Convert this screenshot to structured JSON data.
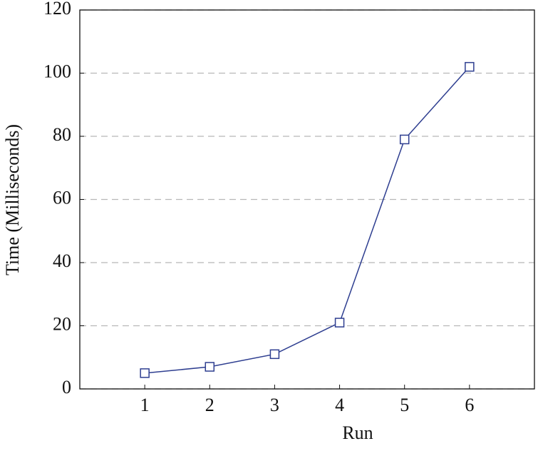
{
  "chart_data": {
    "type": "line",
    "x_label": "Run",
    "y_label": "Time (Milliseconds)",
    "x": [
      1,
      2,
      3,
      4,
      5,
      6
    ],
    "series": [
      {
        "name": "Time",
        "color": "#2e3e90",
        "values": [
          5,
          7,
          11,
          21,
          79,
          102
        ]
      }
    ],
    "xlim": [
      0,
      7
    ],
    "xticks": [
      1,
      2,
      3,
      4,
      5,
      6
    ],
    "ylim": [
      0,
      120
    ],
    "yticks": [
      0,
      20,
      40,
      60,
      80,
      100,
      120
    ],
    "grid": true,
    "marker": "square"
  }
}
